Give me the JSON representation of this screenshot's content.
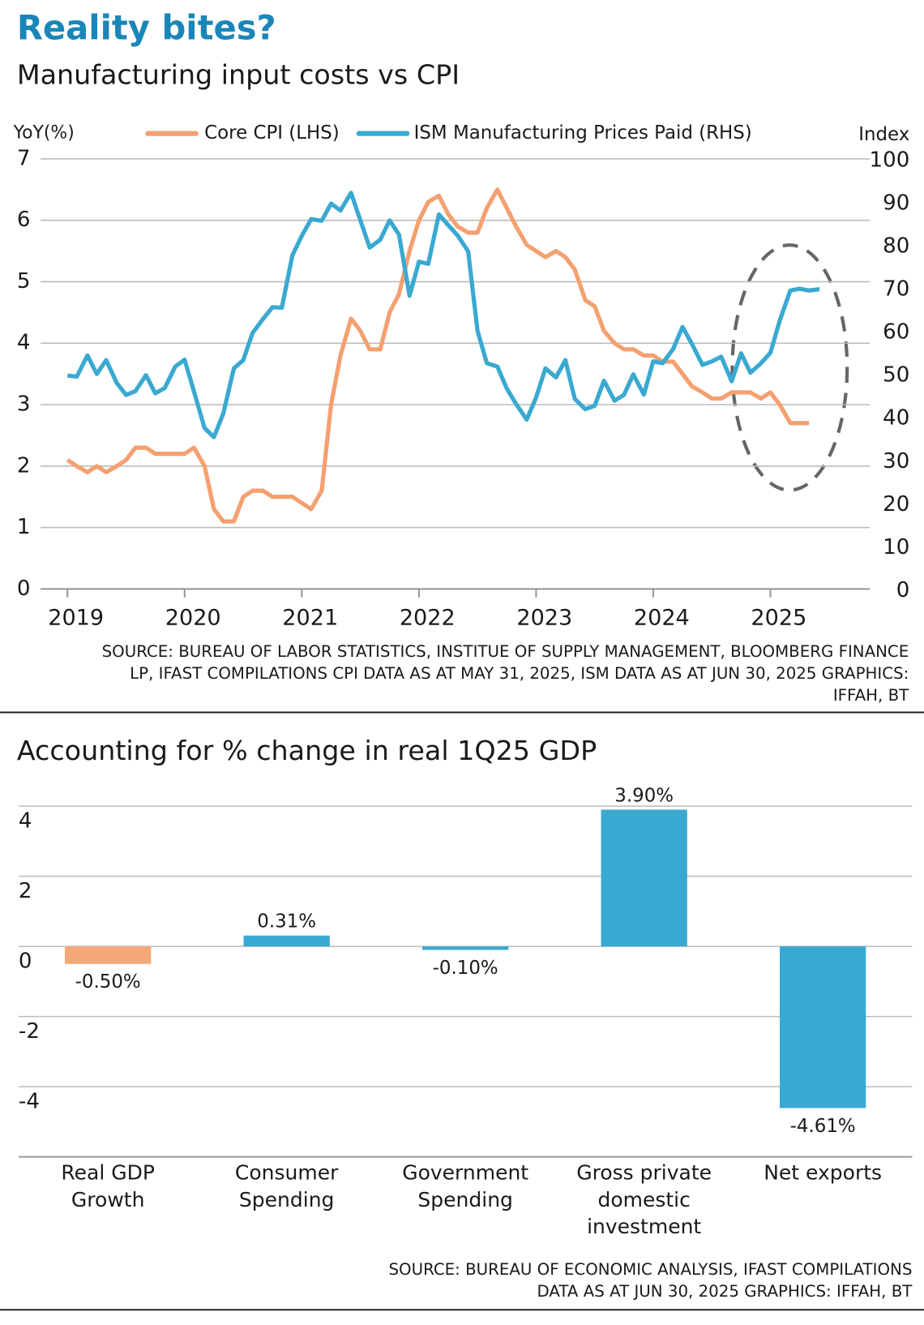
{
  "header": {
    "title": "Reality bites?"
  },
  "chart_data": [
    {
      "type": "line",
      "title": "Manufacturing input costs vs CPI",
      "y_label": "YoY(%)",
      "y2_label": "Index",
      "x": [
        2019,
        2019.08,
        2019.17,
        2019.25,
        2019.33,
        2019.42,
        2019.5,
        2019.58,
        2019.67,
        2019.75,
        2019.83,
        2019.92,
        2020,
        2020.08,
        2020.17,
        2020.25,
        2020.33,
        2020.42,
        2020.5,
        2020.58,
        2020.67,
        2020.75,
        2020.83,
        2020.92,
        2021,
        2021.08,
        2021.17,
        2021.25,
        2021.33,
        2021.42,
        2021.5,
        2021.58,
        2021.67,
        2021.75,
        2021.83,
        2021.92,
        2022,
        2022.08,
        2022.17,
        2022.25,
        2022.33,
        2022.42,
        2022.5,
        2022.58,
        2022.67,
        2022.75,
        2022.83,
        2022.92,
        2023,
        2023.08,
        2023.17,
        2023.25,
        2023.33,
        2023.42,
        2023.5,
        2023.58,
        2023.67,
        2023.75,
        2023.83,
        2023.92,
        2024,
        2024.08,
        2024.17,
        2024.25,
        2024.33,
        2024.42,
        2024.5,
        2024.58,
        2024.67,
        2024.75,
        2024.83,
        2024.92,
        2025,
        2025.08,
        2025.17,
        2025.25,
        2025.33,
        2025.42
      ],
      "series": [
        {
          "name": "Core CPI (LHS)",
          "color": "#f4a070",
          "axis": "y",
          "values": [
            2.1,
            2.0,
            1.9,
            2.0,
            1.9,
            2.0,
            2.1,
            2.3,
            2.3,
            2.2,
            2.2,
            2.2,
            2.2,
            2.3,
            2.0,
            1.3,
            1.1,
            1.1,
            1.5,
            1.6,
            1.6,
            1.5,
            1.5,
            1.5,
            1.4,
            1.3,
            1.6,
            3.0,
            3.8,
            4.4,
            4.2,
            3.9,
            3.9,
            4.5,
            4.8,
            5.5,
            6.0,
            6.3,
            6.4,
            6.1,
            5.9,
            5.8,
            5.8,
            6.2,
            6.5,
            6.2,
            5.9,
            5.6,
            5.5,
            5.4,
            5.5,
            5.4,
            5.2,
            4.7,
            4.6,
            4.2,
            4.0,
            3.9,
            3.9,
            3.8,
            3.8,
            3.7,
            3.7,
            3.5,
            3.3,
            3.2,
            3.1,
            3.1,
            3.2,
            3.2,
            3.2,
            3.1,
            3.2,
            3.0,
            2.7,
            2.7,
            2.7,
            null
          ]
        },
        {
          "name": "ISM Manufacturing Prices Paid (RHS)",
          "color": "#3aa9d1",
          "axis": "y2",
          "values": [
            49.6,
            49.4,
            54.3,
            50.0,
            53.2,
            47.9,
            45.1,
            46.0,
            49.7,
            45.5,
            46.7,
            51.7,
            53.3,
            45.9,
            37.4,
            35.3,
            40.8,
            51.3,
            53.2,
            59.5,
            62.8,
            65.5,
            65.4,
            77.6,
            82.1,
            86.0,
            85.6,
            89.6,
            88.0,
            92.1,
            85.7,
            79.4,
            81.2,
            85.7,
            82.4,
            68.2,
            76.1,
            75.6,
            87.1,
            84.6,
            82.2,
            78.5,
            60.0,
            52.5,
            51.7,
            46.6,
            43.0,
            39.4,
            44.5,
            51.3,
            49.2,
            53.2,
            44.2,
            41.8,
            42.6,
            48.4,
            43.8,
            45.1,
            49.9,
            45.2,
            52.9,
            52.5,
            55.8,
            60.9,
            57.0,
            52.1,
            52.9,
            54.0,
            48.3,
            54.8,
            50.3,
            52.5,
            54.9,
            62.4,
            69.4,
            69.8,
            69.4,
            69.7
          ]
        }
      ],
      "xlim": [
        2018.77,
        2025.85
      ],
      "xticks": [
        2019,
        2020,
        2021,
        2022,
        2023,
        2024,
        2025
      ],
      "ylim": [
        0,
        7
      ],
      "yticks": [
        0,
        1,
        2,
        3,
        4,
        5,
        6,
        7
      ],
      "y2lim": [
        0,
        100
      ],
      "y2ticks": [
        0,
        10,
        20,
        30,
        40,
        50,
        60,
        70,
        80,
        90,
        100
      ],
      "grid": true,
      "source": [
        "SOURCE: BUREAU OF LABOR STATISTICS, INSTITUE OF SUPPLY MANAGEMENT, BLOOMBERG FINANCE",
        "LP, IFAST COMPILATIONS CPI DATA AS AT MAY 31, 2025, ISM DATA AS AT JUN 30, 2025   GRAPHICS:",
        "IFFAH, BT"
      ]
    },
    {
      "type": "bar",
      "title": "Accounting for % change in real 1Q25 GDP",
      "categories": [
        "Real GDP\nGrowth",
        "Consumer\nSpending",
        "Government\nSpending",
        "Gross private\ndomestic\ninvestment",
        "Net exports"
      ],
      "values": [
        -0.5,
        0.31,
        -0.1,
        3.9,
        -4.61
      ],
      "value_labels": [
        "-0.50%",
        "0.31%",
        "-0.10%",
        "3.90%",
        "-4.61%"
      ],
      "colors": [
        "#f4a777",
        "#3aa9d1",
        "#3aa9d1",
        "#3aa9d1",
        "#3aa9d1"
      ],
      "ylim": [
        -6,
        4.1
      ],
      "yticks": [
        -4,
        -2,
        0,
        2,
        4
      ],
      "grid": true,
      "source": [
        "SOURCE: BUREAU OF ECONOMIC ANALYSIS, IFAST COMPILATIONS",
        "DATA AS AT JUN 30, 2025   GRAPHICS: IFFAH, BT"
      ]
    }
  ]
}
